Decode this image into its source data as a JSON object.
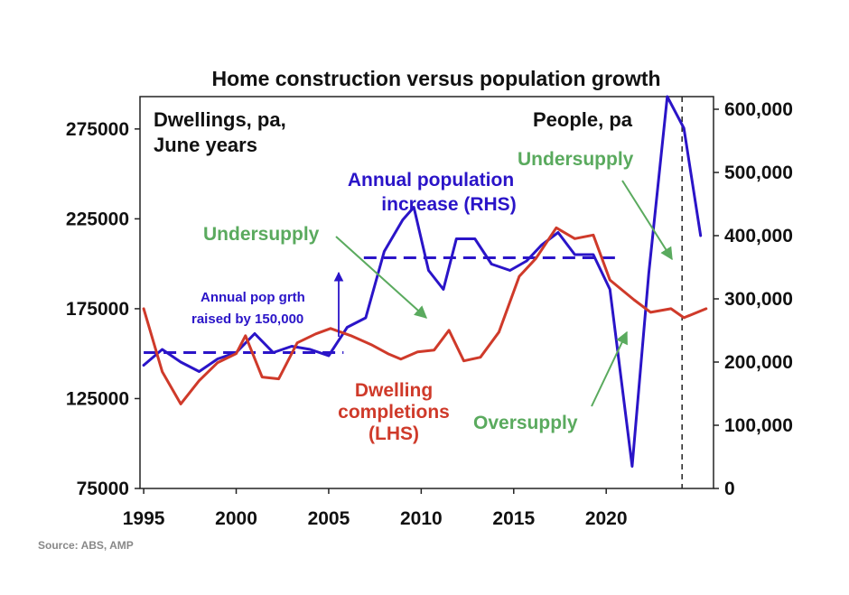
{
  "chart_data": {
    "type": "line",
    "title": "Home construction versus population growth",
    "source": "Source: ABS, AMP",
    "left_axis_label_lines": [
      "Dwellings, pa,",
      "June years"
    ],
    "right_axis_label": "People, pa",
    "x_ticks": [
      1995,
      2000,
      2005,
      2010,
      2015,
      2020
    ],
    "xlim": [
      1994.8,
      2025.8
    ],
    "y_left": {
      "lim": [
        75000,
        293000
      ],
      "ticks": [
        75000,
        125000,
        175000,
        225000,
        275000
      ],
      "tick_labels": [
        "75000",
        "125000",
        "175000",
        "225000",
        "275000"
      ]
    },
    "y_right": {
      "lim": [
        0,
        620000
      ],
      "ticks": [
        0,
        100000,
        200000,
        300000,
        400000,
        500000,
        600000
      ],
      "tick_labels": [
        "0",
        "100,000",
        "200,000",
        "300,000",
        "400,000",
        "500,000",
        "600,000"
      ]
    },
    "series": [
      {
        "name": "Annual population increase (RHS)",
        "axis": "right",
        "color": "#2a14c8",
        "points": [
          [
            1995,
            195000
          ],
          [
            1996,
            220000
          ],
          [
            1997,
            200000
          ],
          [
            1998,
            185000
          ],
          [
            1999,
            205000
          ],
          [
            2000,
            215000
          ],
          [
            2001,
            245000
          ],
          [
            2002,
            215000
          ],
          [
            2003,
            225000
          ],
          [
            2004,
            220000
          ],
          [
            2005,
            210000
          ],
          [
            2006,
            255000
          ],
          [
            2007,
            270000
          ],
          [
            2008,
            375000
          ],
          [
            2009,
            425000
          ],
          [
            2009.6,
            445000
          ],
          [
            2010.4,
            345000
          ],
          [
            2011.2,
            315000
          ],
          [
            2011.9,
            395000
          ],
          [
            2012.9,
            395000
          ],
          [
            2013.8,
            355000
          ],
          [
            2014.8,
            345000
          ],
          [
            2015.7,
            360000
          ],
          [
            2016.5,
            385000
          ],
          [
            2017.4,
            405000
          ],
          [
            2018.3,
            370000
          ],
          [
            2019.3,
            370000
          ],
          [
            2020.2,
            315000
          ],
          [
            2021.4,
            35000
          ],
          [
            2022.3,
            340000
          ],
          [
            2023.3,
            620000
          ],
          [
            2024.2,
            570000
          ],
          [
            2025.1,
            400000
          ]
        ]
      },
      {
        "name": "Dwelling completions (LHS)",
        "axis": "left",
        "color": "#cf3a2a",
        "points": [
          [
            1995,
            175000
          ],
          [
            1996,
            140000
          ],
          [
            1997,
            122000
          ],
          [
            1998,
            135000
          ],
          [
            1999,
            145000
          ],
          [
            2000,
            150000
          ],
          [
            2000.5,
            160000
          ],
          [
            2001.4,
            137000
          ],
          [
            2002.3,
            136000
          ],
          [
            2003.3,
            156000
          ],
          [
            2004.3,
            161000
          ],
          [
            2005.1,
            164000
          ],
          [
            2006.2,
            160000
          ],
          [
            2007.3,
            155000
          ],
          [
            2008.2,
            150000
          ],
          [
            2008.9,
            147000
          ],
          [
            2009.8,
            151000
          ],
          [
            2010.7,
            152000
          ],
          [
            2011.5,
            163000
          ],
          [
            2012.3,
            146000
          ],
          [
            2013.2,
            148000
          ],
          [
            2014.2,
            162000
          ],
          [
            2015.3,
            193000
          ],
          [
            2016.2,
            203000
          ],
          [
            2017.3,
            220000
          ],
          [
            2018.3,
            214000
          ],
          [
            2019.3,
            216000
          ],
          [
            2020.2,
            191000
          ],
          [
            2021.5,
            180000
          ],
          [
            2022.4,
            173000
          ],
          [
            2023.5,
            175000
          ],
          [
            2024.2,
            170000
          ],
          [
            2025.4,
            175000
          ]
        ]
      }
    ],
    "reference_lines": [
      {
        "axis": "right",
        "value": 215000,
        "from": 1995,
        "to": 2005.8,
        "style": "dashed",
        "color": "#2a14c8"
      },
      {
        "axis": "right",
        "value": 365000,
        "from": 2006.9,
        "to": 2020.5,
        "style": "dashed",
        "color": "#2a14c8"
      }
    ],
    "vertical_marker": {
      "x": 2024.1,
      "style": "dashed",
      "color": "#222"
    },
    "annotations": {
      "population": [
        "Annual population",
        "increase (RHS)"
      ],
      "dwellings": [
        "Dwelling",
        "completions",
        "(LHS)"
      ],
      "undersupply_1": "Undersupply",
      "undersupply_2": "Undersupply",
      "oversupply": "Oversupply",
      "pop_raise": [
        "Annual pop grth",
        "raised by 150,000"
      ]
    }
  }
}
